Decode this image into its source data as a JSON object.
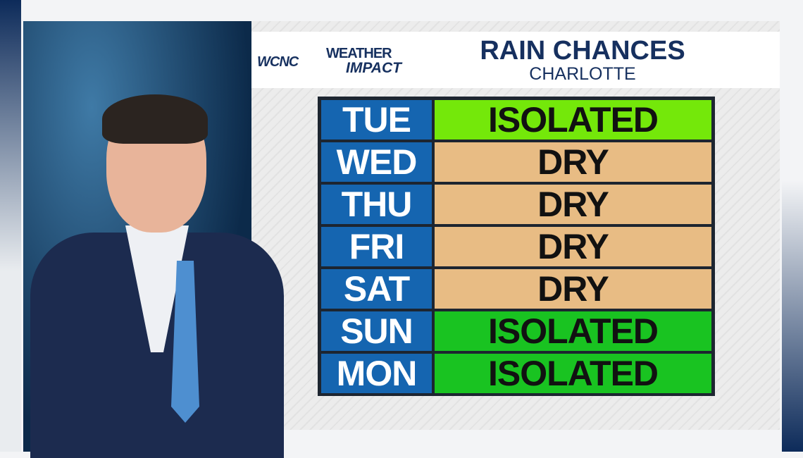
{
  "branding": {
    "station": "WCNC",
    "product_line1": "WEATHER",
    "product_line2": "IMPACT"
  },
  "header": {
    "title": "RAIN CHANCES",
    "subtitle": "CHARLOTTE"
  },
  "colors": {
    "day": "#1565b0",
    "isolated_light": "#74e80a",
    "dry": "#e8bc84",
    "isolated": "#19c321"
  },
  "rows": [
    {
      "day": "TUE",
      "value": "ISOLATED",
      "color": "#74e80a"
    },
    {
      "day": "WED",
      "value": "DRY",
      "color": "#e8bc84"
    },
    {
      "day": "THU",
      "value": "DRY",
      "color": "#e8bc84"
    },
    {
      "day": "FRI",
      "value": "DRY",
      "color": "#e8bc84"
    },
    {
      "day": "SAT",
      "value": "DRY",
      "color": "#e8bc84"
    },
    {
      "day": "SUN",
      "value": "ISOLATED",
      "color": "#19c321"
    },
    {
      "day": "MON",
      "value": "ISOLATED",
      "color": "#19c321"
    }
  ]
}
